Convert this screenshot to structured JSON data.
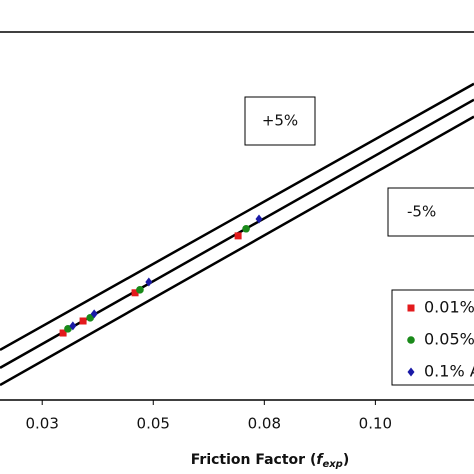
{
  "chart_data": {
    "type": "scatter",
    "x_label": [
      "Friction Factor (",
      "f",
      "exp",
      ")"
    ],
    "xlim": [
      0.0155,
      0.1222
    ],
    "ylim": [
      0,
      0.15
    ],
    "xticks": [
      {
        "value": 0.025,
        "label": "0.03"
      },
      {
        "value": 0.05,
        "label": "0.05"
      },
      {
        "value": 0.075,
        "label": "0.08"
      },
      {
        "value": 0.1,
        "label": "0.10"
      }
    ],
    "lines": [
      {
        "x": [
          0.0155,
          0.1222
        ],
        "y": [
          0.0204,
          0.1289
        ]
      },
      {
        "x": [
          0.0155,
          0.1222
        ],
        "y": [
          0.0131,
          0.1224
        ]
      },
      {
        "x": [
          0.0155,
          0.1222
        ],
        "y": [
          0.0061,
          0.1155
        ]
      }
    ],
    "annotations": [
      {
        "text": "+5%"
      },
      {
        "text": "-5%"
      }
    ],
    "series": [
      {
        "name": "0.01%",
        "color": "#e31a1c",
        "marker": "square",
        "x": [
          0.0297,
          0.0342,
          0.0459,
          0.0691
        ],
        "y": [
          0.0273,
          0.0322,
          0.0437,
          0.0669
        ]
      },
      {
        "name": "0.05%",
        "color": "#1a8a1a",
        "marker": "circle",
        "x": [
          0.0308,
          0.0358,
          0.047,
          0.0709
        ],
        "y": [
          0.029,
          0.0335,
          0.0449,
          0.0698
        ]
      },
      {
        "name": "0.1% A",
        "color": "#1a1aa6",
        "marker": "diamond",
        "x": [
          0.0319,
          0.0367,
          0.049,
          0.0738
        ],
        "y": [
          0.0302,
          0.0351,
          0.0481,
          0.0738
        ]
      }
    ]
  }
}
